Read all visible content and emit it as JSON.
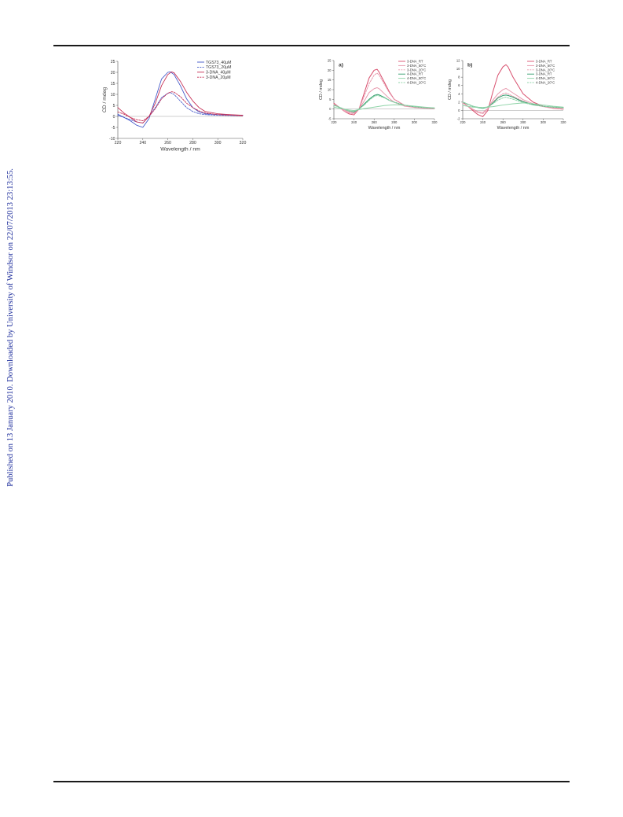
{
  "sidebar_text": "Published on 13 January 2010. Downloaded by University of Windsor on 22/07/2013 23:13:55.",
  "chart_data": [
    {
      "type": "line",
      "xlabel": "Wavelength / nm",
      "ylabel": "CD / mdeg",
      "xlim": [
        220,
        320
      ],
      "ylim": [
        -10,
        25
      ],
      "xticks": [
        "220",
        "240",
        "260",
        "280",
        "300",
        "320"
      ],
      "yticks": [
        "-10",
        "-5",
        "0",
        "5",
        "10",
        "15",
        "20",
        "25"
      ],
      "grid": false,
      "legend": "top-right",
      "series": [
        {
          "name": "TGS73_40µM",
          "color": "#3f55c8",
          "style": "solid",
          "x": [
            220,
            225,
            230,
            235,
            240,
            245,
            250,
            255,
            260,
            262,
            265,
            270,
            275,
            280,
            285,
            290,
            300,
            310,
            320
          ],
          "y": [
            1,
            -0.5,
            -2,
            -4,
            -5,
            -1,
            8,
            17,
            20,
            20.2,
            19,
            14,
            8,
            4,
            2,
            1.2,
            0.8,
            0.6,
            0.5
          ]
        },
        {
          "name": "TGS73_20µM",
          "color": "#3f55c8",
          "style": "dashed",
          "x": [
            220,
            225,
            230,
            235,
            240,
            245,
            250,
            255,
            260,
            262,
            265,
            270,
            275,
            280,
            285,
            290,
            300,
            310,
            320
          ],
          "y": [
            0.5,
            -0.5,
            -1.5,
            -2.5,
            -3,
            0,
            4,
            8.5,
            10.5,
            10.8,
            10,
            7,
            4,
            2.2,
            1.2,
            0.8,
            0.5,
            0.4,
            0.3
          ]
        },
        {
          "name": "3-DNA_40µM",
          "color": "#c4284f",
          "style": "solid",
          "x": [
            220,
            225,
            230,
            235,
            240,
            245,
            250,
            255,
            260,
            263,
            265,
            270,
            275,
            280,
            285,
            290,
            300,
            310,
            320
          ],
          "y": [
            4,
            1.5,
            -0.5,
            -2.5,
            -3,
            0,
            6,
            14,
            19,
            20.2,
            19.8,
            16,
            11,
            7,
            4,
            2.2,
            1.2,
            0.8,
            0.5
          ]
        },
        {
          "name": "3-DNA_20µM",
          "color": "#c4284f",
          "style": "dashed",
          "x": [
            220,
            225,
            230,
            235,
            240,
            245,
            250,
            255,
            260,
            263,
            265,
            270,
            275,
            280,
            285,
            290,
            300,
            310,
            320
          ],
          "y": [
            2,
            1,
            -0.5,
            -1.5,
            -2,
            0,
            3.5,
            8,
            10.5,
            11.2,
            11,
            9,
            6,
            4,
            2.5,
            1.5,
            0.8,
            0.5,
            0.3
          ]
        }
      ]
    },
    {
      "type": "line",
      "panel_label": "a)",
      "xlabel": "Wavelength / nm",
      "ylabel": "CD / mdeg",
      "xlim": [
        220,
        320
      ],
      "ylim": [
        -5,
        25
      ],
      "xticks": [
        "220",
        "240",
        "260",
        "280",
        "300",
        "320"
      ],
      "yticks": [
        "-5",
        "0",
        "5",
        "10",
        "15",
        "20",
        "25"
      ],
      "grid": false,
      "legend": "top-right",
      "series": [
        {
          "name": "3-DNA_RT",
          "color": "#d8506e",
          "style": "solid",
          "x": [
            220,
            225,
            230,
            235,
            240,
            245,
            250,
            255,
            260,
            263,
            265,
            270,
            275,
            280,
            290,
            300,
            310,
            320
          ],
          "y": [
            3,
            1,
            -1,
            -2.5,
            -3,
            0,
            8,
            16,
            20,
            20.5,
            19,
            14,
            9,
            5,
            2,
            1,
            0.5,
            0.3
          ]
        },
        {
          "name": "3-DNA_50°C",
          "color": "#e89aae",
          "style": "solid",
          "x": [
            220,
            225,
            230,
            235,
            240,
            245,
            250,
            255,
            260,
            263,
            265,
            270,
            275,
            280,
            290,
            300,
            310,
            320
          ],
          "y": [
            2.5,
            1,
            -0.5,
            -1.5,
            -2,
            0,
            4,
            8.5,
            10.5,
            11,
            10.5,
            8,
            5.5,
            3.5,
            1.5,
            0.8,
            0.4,
            0.2
          ]
        },
        {
          "name": "3-DNA_20°C",
          "color": "#e89aae",
          "style": "dashed",
          "x": [
            220,
            225,
            230,
            235,
            240,
            245,
            250,
            255,
            260,
            263,
            265,
            270,
            275,
            280,
            290,
            300,
            310,
            320
          ],
          "y": [
            2.5,
            1,
            -1,
            -2,
            -2.5,
            0,
            6.5,
            13,
            17.5,
            18.5,
            17.5,
            13,
            8.5,
            5,
            2,
            1,
            0.5,
            0.3
          ]
        },
        {
          "name": "4-DNA_RT",
          "color": "#2e9a6a",
          "style": "solid",
          "x": [
            220,
            225,
            230,
            235,
            240,
            245,
            250,
            255,
            260,
            263,
            265,
            270,
            275,
            280,
            290,
            300,
            310,
            320
          ],
          "y": [
            2,
            1,
            0,
            -1,
            -1.5,
            0,
            2.5,
            5,
            7,
            7.5,
            7.3,
            6,
            4.5,
            3.5,
            2,
            1.2,
            0.8,
            0.5
          ]
        },
        {
          "name": "4-DNA_50°C",
          "color": "#8fd4a8",
          "style": "solid",
          "x": [
            220,
            225,
            230,
            235,
            240,
            245,
            250,
            260,
            270,
            280,
            290,
            300,
            310,
            320
          ],
          "y": [
            1,
            0.5,
            0,
            -0.5,
            -0.8,
            -0.3,
            0.2,
            1,
            1.8,
            2.2,
            2,
            1.5,
            1,
            0.6
          ]
        },
        {
          "name": "4-DNA_20°C",
          "color": "#8fd4a8",
          "style": "dashed",
          "x": [
            220,
            225,
            230,
            235,
            240,
            245,
            250,
            255,
            260,
            263,
            265,
            270,
            275,
            280,
            290,
            300,
            310,
            320
          ],
          "y": [
            2,
            1,
            0,
            -1,
            -1.2,
            0,
            2,
            4.5,
            6.5,
            7,
            6.8,
            5.8,
            4.5,
            3.5,
            2,
            1.2,
            0.8,
            0.5
          ]
        }
      ]
    },
    {
      "type": "line",
      "panel_label": "b)",
      "xlabel": "Wavelength / nm",
      "ylabel": "CD / mdeg",
      "xlim": [
        220,
        320
      ],
      "ylim": [
        -2,
        12
      ],
      "xticks": [
        "220",
        "240",
        "260",
        "280",
        "300",
        "320"
      ],
      "yticks": [
        "-2",
        "0",
        "2",
        "4",
        "6",
        "8",
        "10",
        "12"
      ],
      "grid": false,
      "legend": "top-right",
      "series": [
        {
          "name": "3-DNA_RT",
          "color": "#d8506e",
          "style": "solid",
          "x": [
            220,
            225,
            230,
            235,
            240,
            245,
            250,
            255,
            260,
            263,
            265,
            270,
            275,
            280,
            290,
            300,
            310,
            320
          ],
          "y": [
            2,
            1,
            0,
            -1,
            -1.5,
            0,
            4.5,
            8.5,
            10.5,
            11,
            10.5,
            8,
            6,
            4,
            2,
            1,
            0.5,
            0.3
          ]
        },
        {
          "name": "3-DNA_50°C",
          "color": "#e89aae",
          "style": "solid",
          "x": [
            220,
            225,
            230,
            235,
            240,
            245,
            250,
            255,
            260,
            263,
            265,
            270,
            275,
            280,
            290,
            300,
            310,
            320
          ],
          "y": [
            1.8,
            1,
            0.3,
            -0.3,
            -0.5,
            0.5,
            2.5,
            4,
            5,
            5.3,
            5,
            4.2,
            3.4,
            2.6,
            1.6,
            1,
            0.6,
            0.4
          ]
        },
        {
          "name": "3-DNA_20°C",
          "color": "#e89aae",
          "style": "dashed",
          "x": [
            220,
            225,
            230,
            235,
            240,
            245,
            250,
            255,
            260,
            263,
            265,
            270,
            275,
            280,
            290,
            300,
            310,
            320
          ],
          "y": [
            1.8,
            1,
            0.2,
            -0.5,
            -0.8,
            0.3,
            2,
            3.2,
            4,
            4.2,
            4,
            3.4,
            2.8,
            2.2,
            1.4,
            0.9,
            0.5,
            0.3
          ]
        },
        {
          "name": "3-DNA_RT",
          "color": "#2e9a6a",
          "style": "solid",
          "x": [
            220,
            225,
            230,
            235,
            240,
            245,
            250,
            255,
            260,
            263,
            265,
            270,
            275,
            280,
            290,
            300,
            310,
            320
          ],
          "y": [
            2,
            1.5,
            1,
            0.7,
            0.5,
            0.8,
            1.8,
            3,
            3.6,
            3.7,
            3.6,
            3.2,
            2.6,
            2.1,
            1.4,
            1,
            0.8,
            0.7
          ]
        },
        {
          "name": "4-DNA_50°C",
          "color": "#8fd4a8",
          "style": "solid",
          "x": [
            220,
            230,
            240,
            250,
            260,
            270,
            280,
            290,
            300,
            310,
            320
          ],
          "y": [
            1.2,
            0.8,
            0.7,
            0.9,
            1.3,
            1.6,
            1.8,
            1.6,
            1.3,
            1,
            0.8
          ]
        },
        {
          "name": "4-DNA_20°C",
          "color": "#8fd4a8",
          "style": "dashed",
          "x": [
            220,
            225,
            230,
            235,
            240,
            245,
            250,
            255,
            260,
            263,
            265,
            270,
            275,
            280,
            290,
            300,
            310,
            320
          ],
          "y": [
            2,
            1.5,
            1,
            0.8,
            0.6,
            0.9,
            1.6,
            2.5,
            3,
            3.2,
            3,
            2.7,
            2.3,
            1.9,
            1.3,
            1,
            0.8,
            0.6
          ]
        }
      ]
    }
  ]
}
